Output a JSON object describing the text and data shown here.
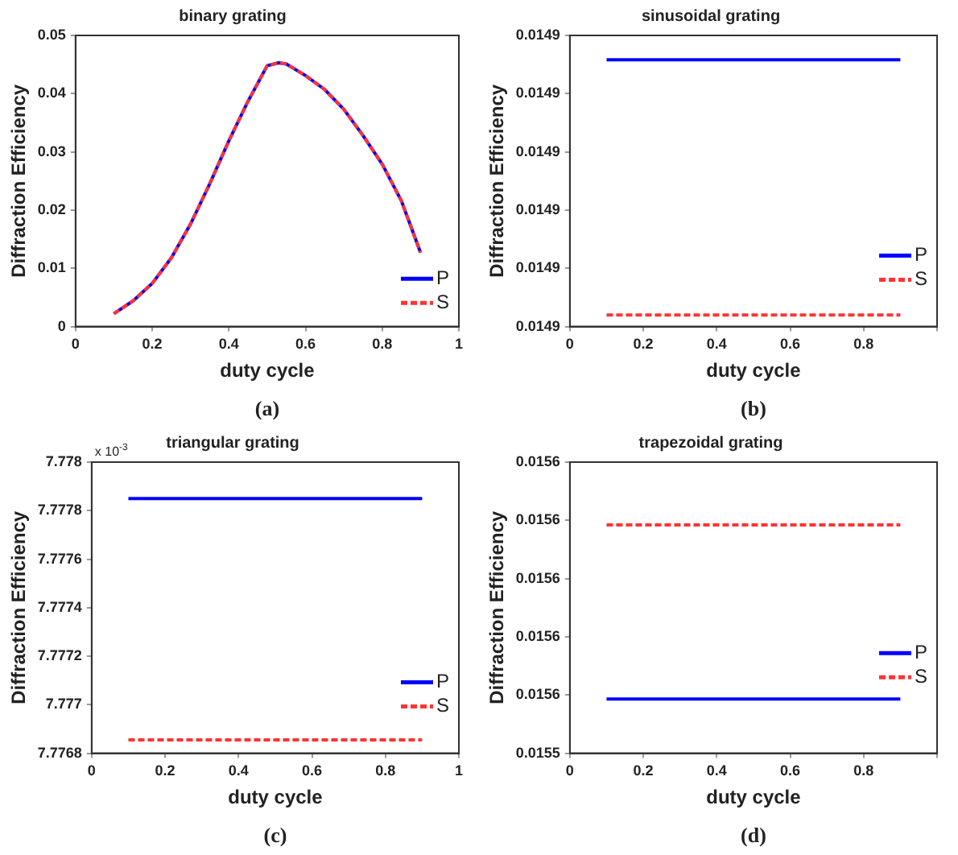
{
  "chart_data": [
    {
      "type": "line",
      "title": "binary grating",
      "xlabel": "duty cycle",
      "ylabel": "Diffraction Efficiency",
      "x": [
        0.1,
        0.15,
        0.2,
        0.25,
        0.3,
        0.35,
        0.4,
        0.45,
        0.5,
        0.53,
        0.55,
        0.6,
        0.65,
        0.7,
        0.75,
        0.8,
        0.85,
        0.9
      ],
      "series": [
        {
          "name": "P",
          "color": "#0000ff",
          "line_style": "solid",
          "values": [
            0.0022,
            0.0044,
            0.0074,
            0.0118,
            0.0176,
            0.0245,
            0.0319,
            0.0387,
            0.0448,
            0.0453,
            0.0451,
            0.0431,
            0.0407,
            0.0373,
            0.0328,
            0.0279,
            0.0216,
            0.0127
          ]
        },
        {
          "name": "S",
          "color": "#ff3333",
          "line_style": "dashed",
          "values": [
            0.0022,
            0.0044,
            0.0074,
            0.0118,
            0.0176,
            0.0245,
            0.0319,
            0.0387,
            0.0448,
            0.0453,
            0.0451,
            0.0431,
            0.0407,
            0.0373,
            0.0328,
            0.0279,
            0.0216,
            0.0127
          ]
        }
      ],
      "xlim": [
        0,
        1
      ],
      "xticks": [
        0,
        0.2,
        0.4,
        0.6,
        0.8,
        1
      ],
      "ylim": [
        0,
        0.05
      ],
      "yticks": [
        0,
        0.01,
        0.02,
        0.03,
        0.04,
        0.05
      ],
      "grid": false,
      "marker": "none",
      "legend": "bottom right",
      "annotations": [
        "(a)"
      ]
    },
    {
      "type": "line",
      "title": "sinusoidal grating",
      "xlabel": "duty cycle",
      "ylabel": "Diffraction Efficiency",
      "x": [
        0.1,
        0.9
      ],
      "series": [
        {
          "name": "P",
          "color": "#0000ff",
          "line_style": "solid",
          "values": [
            0.0149058,
            0.0149058
          ]
        },
        {
          "name": "S",
          "color": "#ff3333",
          "line_style": "dashed",
          "values": [
            0.014862,
            0.014862
          ]
        }
      ],
      "xlim": [
        0,
        1
      ],
      "xticks": [
        0,
        0.2,
        0.4,
        0.6,
        0.8,
        {
          "value": 1,
          "label": null
        }
      ],
      "ylim": [
        0.01486,
        0.01491
      ],
      "yticks": [
        {
          "value": 0.01486,
          "label": "0.0149"
        },
        {
          "value": 0.01487,
          "label": "0.0149"
        },
        {
          "value": 0.01488,
          "label": "0.0149"
        },
        {
          "value": 0.01489,
          "label": "0.0149"
        },
        {
          "value": 0.0149,
          "label": "0.0149"
        },
        {
          "value": 0.01491,
          "label": "0.0149"
        }
      ],
      "grid": false,
      "marker": "none",
      "legend": "bottom right",
      "annotations": [
        "(b)"
      ]
    },
    {
      "type": "line",
      "title": "triangular grating",
      "xlabel": "duty cycle",
      "ylabel": "Diffraction Efficiency",
      "x": [
        0.1,
        0.9
      ],
      "series": [
        {
          "name": "P",
          "color": "#0000ff",
          "line_style": "solid",
          "values": [
            7.77785,
            7.77785
          ]
        },
        {
          "name": "S",
          "color": "#ff3333",
          "line_style": "dashed",
          "values": [
            7.776855,
            7.776855
          ]
        }
      ],
      "xlim": [
        0,
        1
      ],
      "xticks": [
        0,
        0.2,
        0.4,
        0.6,
        0.8,
        1
      ],
      "ylim": [
        7.7768,
        7.778
      ],
      "yticks": [
        7.7768,
        7.777,
        7.7772,
        7.7774,
        7.7776,
        7.7778,
        7.778
      ],
      "grid": false,
      "marker": "none",
      "legend": "bottom right",
      "annotations": [
        "x 10$^{-3}$",
        "(c)"
      ]
    },
    {
      "type": "line",
      "title": "trapezoidal grating",
      "xlabel": "duty cycle",
      "ylabel": "Diffraction Efficiency",
      "x": [
        0.1,
        0.9
      ],
      "series": [
        {
          "name": "P",
          "color": "#0000ff",
          "line_style": "solid",
          "values": [
            0.01554986,
            0.01554986
          ]
        },
        {
          "name": "S",
          "color": "#ff3333",
          "line_style": "dashed",
          "values": [
            0.01555584,
            0.01555584
          ]
        }
      ],
      "xlim": [
        0,
        1
      ],
      "xticks": [
        0,
        0.2,
        0.4,
        0.6,
        0.8,
        {
          "value": 1,
          "label": null
        }
      ],
      "ylim": [
        0.015548,
        0.015558
      ],
      "yticks": [
        {
          "value": 0.015548,
          "label": "0.0155"
        },
        {
          "value": 0.01555,
          "label": "0.0156"
        },
        {
          "value": 0.015552,
          "label": "0.0156"
        },
        {
          "value": 0.015554,
          "label": "0.0156"
        },
        {
          "value": 0.015556,
          "label": "0.0156"
        },
        {
          "value": 0.015558,
          "label": "0.0156"
        }
      ],
      "grid": false,
      "marker": "none",
      "legend": "bottom right",
      "annotations": [
        "(d)"
      ]
    }
  ]
}
